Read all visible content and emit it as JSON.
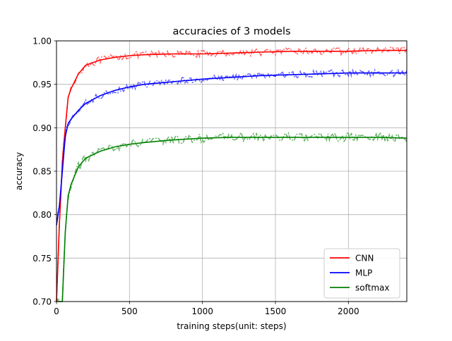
{
  "chart_data": {
    "type": "line",
    "title": "accuracies of 3 models",
    "xlabel": "training steps(unit: steps)",
    "ylabel": "accuracy",
    "xlim": [
      0,
      2400
    ],
    "ylim": [
      0.7,
      1.0
    ],
    "xticks": [
      0,
      500,
      1000,
      1500,
      2000
    ],
    "xtick_labels": [
      "0",
      "500",
      "1000",
      "1500",
      "2000"
    ],
    "yticks": [
      0.7,
      0.75,
      0.8,
      0.85,
      0.9,
      0.95,
      1.0
    ],
    "ytick_labels": [
      "0.70",
      "0.75",
      "0.80",
      "0.85",
      "0.90",
      "0.95",
      "1.00"
    ],
    "grid": true,
    "legend_position": "lower-right",
    "series": [
      {
        "name": "CNN",
        "color": "#ff0000",
        "x": [
          0,
          20,
          40,
          60,
          80,
          100,
          150,
          200,
          300,
          400,
          500,
          600,
          800,
          1000,
          1200,
          1400,
          1600,
          1800,
          2000,
          2200,
          2400
        ],
        "values": [
          0.7,
          0.79,
          0.86,
          0.9,
          0.935,
          0.945,
          0.962,
          0.972,
          0.978,
          0.981,
          0.983,
          0.984,
          0.985,
          0.985,
          0.986,
          0.987,
          0.988,
          0.988,
          0.988,
          0.989,
          0.989
        ],
        "noise": 0.004
      },
      {
        "name": "MLP",
        "color": "#0000ff",
        "x": [
          0,
          20,
          40,
          60,
          80,
          100,
          150,
          200,
          300,
          400,
          500,
          600,
          800,
          1000,
          1200,
          1400,
          1600,
          1800,
          2000,
          2200,
          2400
        ],
        "values": [
          0.788,
          0.81,
          0.85,
          0.89,
          0.905,
          0.91,
          0.92,
          0.928,
          0.937,
          0.943,
          0.947,
          0.95,
          0.953,
          0.956,
          0.958,
          0.96,
          0.961,
          0.962,
          0.963,
          0.963,
          0.963
        ],
        "noise": 0.004
      },
      {
        "name": "softmax",
        "color": "#008000",
        "x": [
          0,
          40,
          60,
          80,
          100,
          150,
          200,
          300,
          400,
          500,
          600,
          800,
          1000,
          1200,
          1400,
          1600,
          1800,
          2000,
          2200,
          2400
        ],
        "values": [
          0.7,
          0.7,
          0.78,
          0.822,
          0.835,
          0.855,
          0.865,
          0.873,
          0.878,
          0.881,
          0.883,
          0.886,
          0.888,
          0.889,
          0.889,
          0.889,
          0.889,
          0.889,
          0.889,
          0.888
        ],
        "noise": 0.005
      }
    ]
  }
}
